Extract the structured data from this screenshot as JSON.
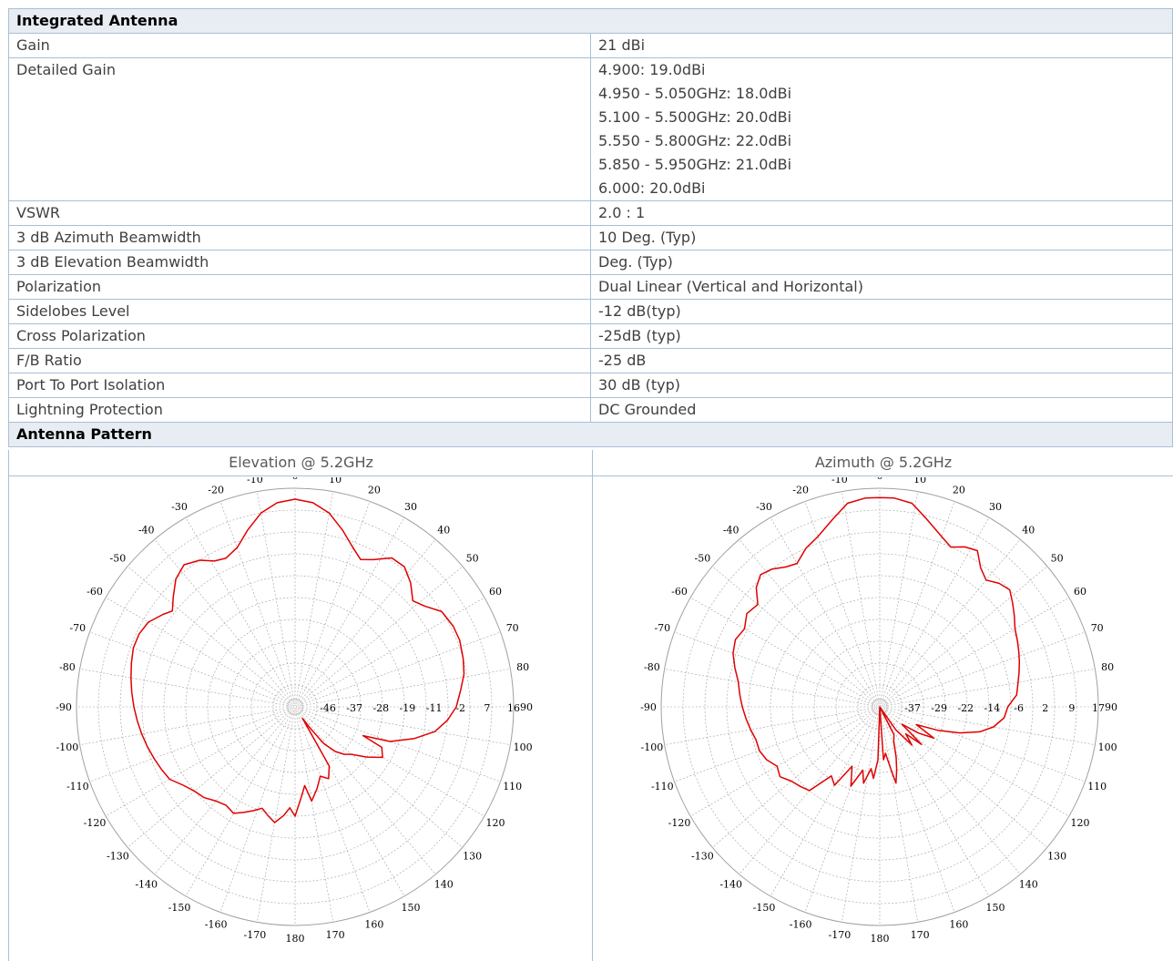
{
  "integrated_antenna": {
    "title": "Integrated Antenna",
    "rows": [
      {
        "label": "Gain",
        "values": [
          "21 dBi"
        ]
      },
      {
        "label": "Detailed Gain",
        "values": [
          "4.900: 19.0dBi",
          "4.950 - 5.050GHz: 18.0dBi",
          "5.100 - 5.500GHz: 20.0dBi",
          "5.550 - 5.800GHz: 22.0dBi",
          "5.850 - 5.950GHz: 21.0dBi",
          "6.000: 20.0dBi"
        ]
      },
      {
        "label": "VSWR",
        "values": [
          "2.0 : 1"
        ]
      },
      {
        "label": "3 dB Azimuth Beamwidth",
        "values": [
          "10 Deg. (Typ)"
        ]
      },
      {
        "label": "3 dB Elevation Beamwidth",
        "values": [
          "Deg. (Typ)"
        ]
      },
      {
        "label": "Polarization",
        "values": [
          "Dual Linear (Vertical and Horizontal)"
        ]
      },
      {
        "label": "Sidelobes Level",
        "values": [
          "-12 dB(typ)"
        ]
      },
      {
        "label": "Cross Polarization",
        "values": [
          "-25dB (typ)"
        ]
      },
      {
        "label": "F/B Ratio",
        "values": [
          "-25 dB"
        ]
      },
      {
        "label": "Port To Port Isolation",
        "values": [
          "30 dB (typ)"
        ]
      },
      {
        "label": "Lightning Protection",
        "values": [
          "DC Grounded"
        ]
      }
    ]
  },
  "antenna_pattern": {
    "title": "Antenna Pattern",
    "elevation_title": "Elevation @ 5.2GHz",
    "azimuth_title": "Azimuth @ 5.2GHz"
  },
  "colors": {
    "trace": "#e00000",
    "grid": "#a0a0a0",
    "border": "#a9bfd6",
    "header_bg": "#e8edf3"
  },
  "chart_data": [
    {
      "type": "polar",
      "title": "Elevation @ 5.2GHz",
      "angle_labels": [
        "0",
        "10",
        "20",
        "30",
        "40",
        "50",
        "60",
        "70",
        "80",
        "90",
        "100",
        "110",
        "120",
        "130",
        "140",
        "150",
        "160",
        "170",
        "180",
        "-170",
        "-160",
        "-150",
        "-140",
        "-130",
        "-120",
        "-110",
        "-100",
        "-90",
        "-80",
        "-70",
        "-60",
        "-50",
        "-40",
        "-30",
        "-20",
        "-10"
      ],
      "radius_labels": [
        "-46",
        "-37",
        "-28",
        "-19",
        "-11",
        "-2",
        "7",
        "16"
      ],
      "rlim": [
        -55,
        25
      ],
      "series": [
        {
          "points": [
            [
              -20,
              7
            ],
            [
              -15,
              12
            ],
            [
              -10,
              17
            ],
            [
              -5,
              20
            ],
            [
              0,
              21
            ],
            [
              5,
              20
            ],
            [
              10,
              17
            ],
            [
              15,
              12
            ],
            [
              20,
              7
            ],
            [
              24,
              4
            ],
            [
              28,
              6
            ],
            [
              33,
              10
            ],
            [
              38,
              10
            ],
            [
              43,
              7
            ],
            [
              48,
              3
            ],
            [
              52,
              5
            ],
            [
              57,
              9
            ],
            [
              63,
              10
            ],
            [
              68,
              10
            ],
            [
              74,
              9
            ],
            [
              79,
              8
            ],
            [
              84,
              6
            ],
            [
              90,
              4
            ],
            [
              95,
              1
            ],
            [
              100,
              -3
            ],
            [
              105,
              -10
            ],
            [
              110,
              -18
            ],
            [
              113,
              -28
            ],
            [
              115,
              -20
            ],
            [
              120,
              -18
            ],
            [
              125,
              -23
            ],
            [
              130,
              -28
            ],
            [
              134,
              -30
            ],
            [
              138,
              -33
            ],
            [
              142,
              -38
            ],
            [
              145,
              -46
            ],
            [
              147,
              -50
            ],
            [
              150,
              -30
            ],
            [
              155,
              -26
            ],
            [
              160,
              -28
            ],
            [
              165,
              -24
            ],
            [
              170,
              -20
            ],
            [
              173,
              -26
            ],
            [
              176,
              -22
            ],
            [
              180,
              -15
            ],
            [
              -177,
              -18
            ],
            [
              -174,
              -15
            ],
            [
              -170,
              -12
            ],
            [
              -166,
              -14
            ],
            [
              -162,
              -16
            ],
            [
              -158,
              -14
            ],
            [
              -154,
              -12
            ],
            [
              -150,
              -10
            ],
            [
              -145,
              -11
            ],
            [
              -140,
              -10
            ],
            [
              -135,
              -8
            ],
            [
              -130,
              -7
            ],
            [
              -125,
              -5
            ],
            [
              -120,
              -2
            ],
            [
              -115,
              -1
            ],
            [
              -110,
              0
            ],
            [
              -105,
              1
            ],
            [
              -100,
              2
            ],
            [
              -95,
              3
            ],
            [
              -90,
              4
            ],
            [
              -85,
              5
            ],
            [
              -80,
              6
            ],
            [
              -75,
              7
            ],
            [
              -70,
              8
            ],
            [
              -65,
              8
            ],
            [
              -60,
              7
            ],
            [
              -55,
              4
            ],
            [
              -52,
              2
            ],
            [
              -48,
              5
            ],
            [
              -43,
              9
            ],
            [
              -38,
              11
            ],
            [
              -33,
              9
            ],
            [
              -29,
              6
            ],
            [
              -25,
              5
            ],
            [
              -20,
              7
            ]
          ]
        }
      ]
    },
    {
      "type": "polar",
      "title": "Azimuth @ 5.2GHz",
      "angle_labels": [
        "0",
        "10",
        "20",
        "30",
        "40",
        "50",
        "60",
        "70",
        "80",
        "90",
        "100",
        "110",
        "120",
        "130",
        "140",
        "150",
        "160",
        "170",
        "180",
        "-170",
        "-160",
        "-150",
        "-140",
        "-130",
        "-120",
        "-110",
        "-100",
        "-90",
        "-80",
        "-70",
        "-60",
        "-50",
        "-40",
        "-30",
        "-20",
        "-10"
      ],
      "radius_labels": [
        "-37",
        "-29",
        "-22",
        "-14",
        "-6",
        "2",
        "9",
        "17"
      ],
      "rlim": [
        -45,
        25
      ],
      "series": [
        {
          "points": [
            [
              -25,
              11
            ],
            [
              -20,
              13
            ],
            [
              -14,
              17
            ],
            [
              -9,
              21
            ],
            [
              -4,
              22
            ],
            [
              0,
              22
            ],
            [
              4,
              22
            ],
            [
              9,
              21
            ],
            [
              14,
              17
            ],
            [
              20,
              13
            ],
            [
              24,
              11
            ],
            [
              28,
              13
            ],
            [
              32,
              14
            ],
            [
              36,
              10
            ],
            [
              40,
              8
            ],
            [
              44,
              10
            ],
            [
              48,
              11
            ],
            [
              52,
              9
            ],
            [
              56,
              7
            ],
            [
              60,
              5
            ],
            [
              64,
              4
            ],
            [
              68,
              3
            ],
            [
              72,
              2
            ],
            [
              76,
              1
            ],
            [
              80,
              0
            ],
            [
              85,
              -1
            ],
            [
              90,
              -4
            ],
            [
              95,
              -5
            ],
            [
              100,
              -8
            ],
            [
              104,
              -12
            ],
            [
              108,
              -18
            ],
            [
              112,
              -25
            ],
            [
              116,
              -32
            ],
            [
              120,
              -25
            ],
            [
              124,
              -30
            ],
            [
              128,
              -36
            ],
            [
              132,
              -27
            ],
            [
              136,
              -33
            ],
            [
              140,
              -29
            ],
            [
              145,
              -36
            ],
            [
              150,
              -45
            ],
            [
              153,
              -35
            ],
            [
              158,
              -33
            ],
            [
              162,
              -28
            ],
            [
              165,
              -24
            ],
            [
              168,
              -20
            ],
            [
              170,
              -25
            ],
            [
              173,
              -30
            ],
            [
              176,
              -28
            ],
            [
              180,
              -45
            ],
            [
              -178,
              -28
            ],
            [
              -175,
              -22
            ],
            [
              -172,
              -25
            ],
            [
              -168,
              -20
            ],
            [
              -165,
              -24
            ],
            [
              -160,
              -18
            ],
            [
              -155,
              -24
            ],
            [
              -150,
              -16
            ],
            [
              -145,
              -18
            ],
            [
              -140,
              -10
            ],
            [
              -135,
              -9
            ],
            [
              -130,
              -8
            ],
            [
              -125,
              -6
            ],
            [
              -120,
              -7
            ],
            [
              -115,
              -5
            ],
            [
              -110,
              -4
            ],
            [
              -105,
              -4
            ],
            [
              -100,
              -3
            ],
            [
              -95,
              -2
            ],
            [
              -90,
              -1
            ],
            [
              -85,
              0
            ],
            [
              -80,
              1
            ],
            [
              -75,
              3
            ],
            [
              -70,
              5
            ],
            [
              -65,
              6
            ],
            [
              -60,
              5
            ],
            [
              -55,
              7
            ],
            [
              -50,
              6
            ],
            [
              -46,
              10
            ],
            [
              -42,
              12
            ],
            [
              -38,
              11
            ],
            [
              -34,
              9
            ],
            [
              -30,
              8
            ],
            [
              -25,
              11
            ]
          ]
        }
      ]
    }
  ]
}
